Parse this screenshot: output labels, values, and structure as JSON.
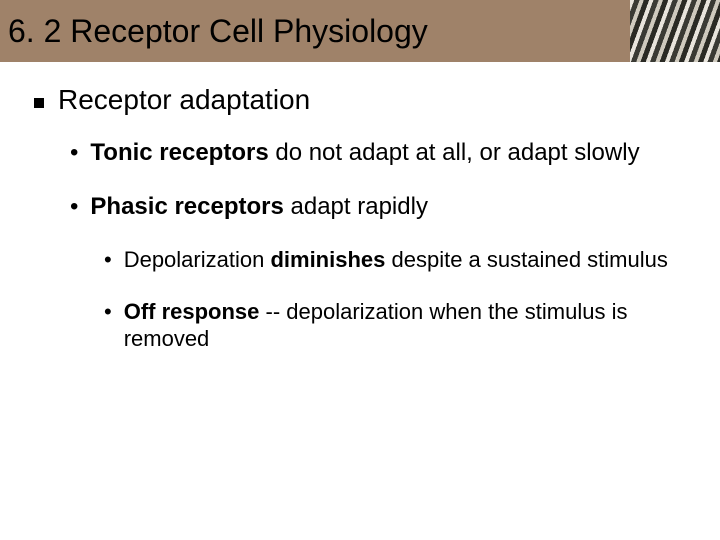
{
  "title": "6. 2 Receptor Cell Physiology",
  "heading": "Receptor adaptation",
  "lvl1": [
    {
      "bold": "Tonic receptors",
      "rest": " do not adapt at all, or adapt slowly"
    },
    {
      "bold": "Phasic receptors",
      "rest": " adapt rapidly"
    }
  ],
  "lvl2": [
    {
      "pre": "Depolarization ",
      "bold": "diminishes",
      "rest": " despite a sustained stimulus"
    },
    {
      "pre": "",
      "bold": "Off response",
      "rest": " -- depolarization when the stimulus is removed"
    }
  ],
  "colors": {
    "title_bg": "#9f8269",
    "page_bg": "#ffffff",
    "text": "#000000"
  },
  "fonts": {
    "title_size": 32,
    "heading_size": 28,
    "lvl1_size": 24,
    "lvl2_size": 22
  }
}
